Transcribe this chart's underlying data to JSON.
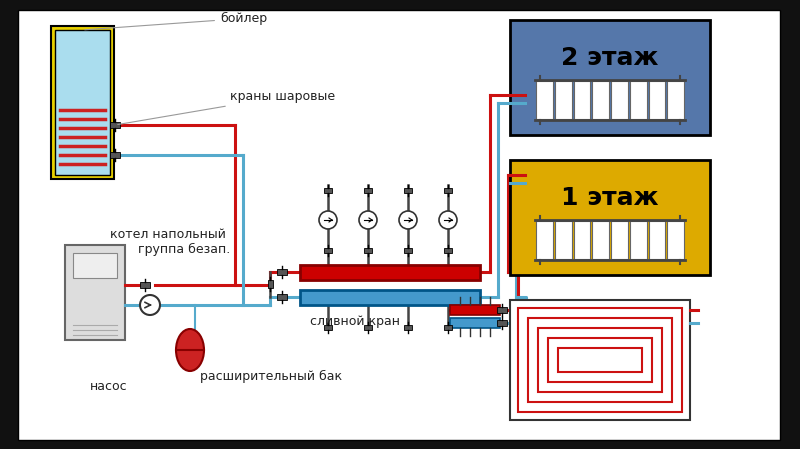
{
  "outer_bg": "#111111",
  "white_bg": "#ffffff",
  "red_pipe": "#cc1111",
  "blue_pipe": "#55aacc",
  "boiler_yellow": "#e8d000",
  "boiler_water": "#aaddee",
  "boiler_coil": "#cc2222",
  "manifold_red": "#cc0000",
  "manifold_blue": "#4499cc",
  "floor2_bg": "#5577aa",
  "floor1_bg": "#ddaa00",
  "expansion_color": "#cc2222",
  "kettle_color": "#dddddd",
  "valve_color": "#555555",
  "label_color": "#222222",
  "ann_line": "#999999",
  "label_boiler": "бойлер",
  "label_ball_valves": "краны шаровые",
  "label_kettle": "котел напольный",
  "label_group": "группа безап.",
  "label_drain": "сливной кран",
  "label_exp": "расширительный бак",
  "label_pump": "насос",
  "label_floor2": "2 этаж",
  "label_floor1": "1 этаж",
  "pipe_lw": 2.2,
  "fig_w": 8.0,
  "fig_h": 4.49,
  "dpi": 100
}
